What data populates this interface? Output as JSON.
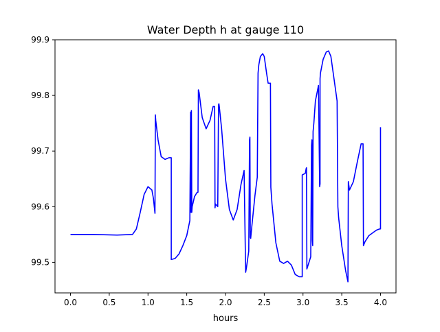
{
  "chart_data": {
    "type": "line",
    "title": "Water Depth h at gauge 110",
    "xlabel": "hours",
    "ylabel": "",
    "xlim": [
      -0.2,
      4.2
    ],
    "ylim": [
      99.445,
      99.9
    ],
    "xticks": [
      0.0,
      0.5,
      1.0,
      1.5,
      2.0,
      2.5,
      3.0,
      3.5,
      4.0
    ],
    "xtick_labels": [
      "0.0",
      "0.5",
      "1.0",
      "1.5",
      "2.0",
      "2.5",
      "3.0",
      "3.5",
      "4.0"
    ],
    "yticks": [
      99.5,
      99.6,
      99.7,
      99.8,
      99.9
    ],
    "ytick_labels": [
      "99.5",
      "99.6",
      "99.7",
      "99.8",
      "99.9"
    ],
    "grid": false,
    "series": [
      {
        "color": "#0000ff",
        "x": [
          0.0,
          0.3,
          0.6,
          0.8,
          0.85,
          0.9,
          0.95,
          1.0,
          1.05,
          1.07,
          1.09,
          1.095,
          1.1,
          1.13,
          1.17,
          1.22,
          1.27,
          1.3,
          1.3,
          1.35,
          1.4,
          1.45,
          1.5,
          1.54,
          1.55,
          1.555,
          1.56,
          1.565,
          1.57,
          1.6,
          1.63,
          1.645,
          1.65,
          1.66,
          1.7,
          1.75,
          1.8,
          1.84,
          1.86,
          1.865,
          1.87,
          1.9,
          1.91,
          1.915,
          1.92,
          1.95,
          2.0,
          2.05,
          2.1,
          2.15,
          2.2,
          2.24,
          2.26,
          2.27,
          2.3,
          2.31,
          2.315,
          2.32,
          2.325,
          2.34,
          2.38,
          2.41,
          2.42,
          2.43,
          2.45,
          2.48,
          2.5,
          2.53,
          2.55,
          2.58,
          2.585,
          2.6,
          2.65,
          2.7,
          2.75,
          2.8,
          2.85,
          2.9,
          2.95,
          2.99,
          2.99,
          3.03,
          3.04,
          3.045,
          3.05,
          3.1,
          3.11,
          3.115,
          3.12,
          3.125,
          3.13,
          3.14,
          3.16,
          3.2,
          3.215,
          3.22,
          3.22,
          3.225,
          3.26,
          3.3,
          3.33,
          3.36,
          3.4,
          3.44,
          3.45,
          3.46,
          3.5,
          3.55,
          3.58,
          3.585,
          3.6,
          3.65,
          3.7,
          3.75,
          3.775,
          3.78,
          3.8,
          3.85,
          3.9,
          3.95,
          3.99,
          4.0,
          4.0
        ],
        "y": [
          99.55,
          99.55,
          99.549,
          99.55,
          99.56,
          99.59,
          99.622,
          99.636,
          99.63,
          99.615,
          99.588,
          99.765,
          99.755,
          99.72,
          99.69,
          99.685,
          99.688,
          99.688,
          99.505,
          99.507,
          99.515,
          99.53,
          99.548,
          99.575,
          99.77,
          99.59,
          99.773,
          99.59,
          99.6,
          99.618,
          99.625,
          99.626,
          99.81,
          99.805,
          99.76,
          99.74,
          99.755,
          99.78,
          99.78,
          99.598,
          99.605,
          99.6,
          99.783,
          99.785,
          99.78,
          99.74,
          99.65,
          99.595,
          99.576,
          99.595,
          99.64,
          99.665,
          99.482,
          99.49,
          99.52,
          99.72,
          99.725,
          99.545,
          99.543,
          99.565,
          99.62,
          99.653,
          99.84,
          99.855,
          99.87,
          99.875,
          99.87,
          99.84,
          99.822,
          99.822,
          99.635,
          99.605,
          99.535,
          99.502,
          99.498,
          99.502,
          99.495,
          99.478,
          99.474,
          99.474,
          99.657,
          99.66,
          99.668,
          99.67,
          99.488,
          99.51,
          99.71,
          99.72,
          99.54,
          99.53,
          99.735,
          99.75,
          99.79,
          99.818,
          99.636,
          99.641,
          99.83,
          99.84,
          99.865,
          99.878,
          99.88,
          99.87,
          99.83,
          99.79,
          99.6,
          99.58,
          99.53,
          99.485,
          99.465,
          99.645,
          99.63,
          99.645,
          99.68,
          99.713,
          99.713,
          99.53,
          99.537,
          99.548,
          99.553,
          99.558,
          99.56,
          99.56,
          99.743
        ]
      }
    ]
  }
}
